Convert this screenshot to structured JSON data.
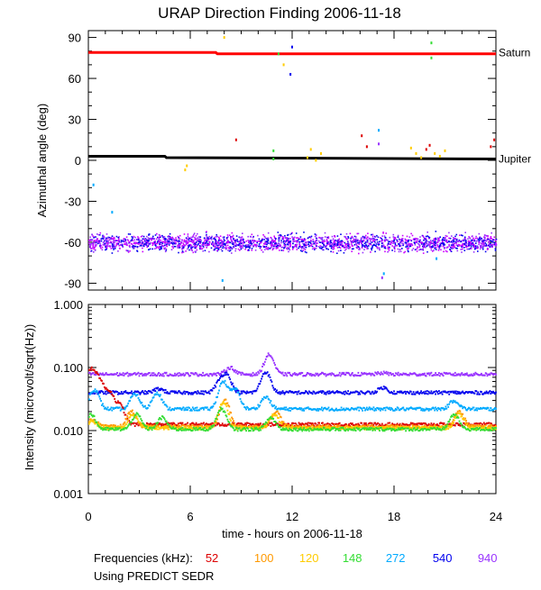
{
  "chart_data": [
    {
      "type": "scatter",
      "title": "URAP Direction Finding  2006-11-18",
      "ylabel": "Azimuthal angle (deg)",
      "xlim": [
        0,
        24
      ],
      "ylim": [
        -95,
        95
      ],
      "yticks": [
        -90,
        -60,
        -30,
        0,
        30,
        60,
        90
      ],
      "xticks": [
        0,
        6,
        12,
        18,
        24
      ],
      "reference_lines": [
        {
          "name": "Saturn",
          "color": "#ff0000",
          "points": [
            [
              0,
              79
            ],
            [
              7.5,
              79
            ],
            [
              7.6,
              78
            ],
            [
              24,
              78
            ]
          ]
        },
        {
          "name": "Jupiter",
          "color": "#000000",
          "points": [
            [
              0,
              3
            ],
            [
              4.5,
              3
            ],
            [
              4.6,
              2
            ],
            [
              24,
              1
            ]
          ]
        }
      ],
      "band": {
        "center": -60,
        "spread": 6,
        "colors": [
          "#9933ff",
          "#0000ee",
          "#cc00ff"
        ]
      },
      "scatter_points": [
        {
          "x": 8.0,
          "y": 90,
          "color": "#ffcc00"
        },
        {
          "x": 8.7,
          "y": 15,
          "color": "#dd0000"
        },
        {
          "x": 10.9,
          "y": 7,
          "color": "#33dd33"
        },
        {
          "x": 10.9,
          "y": 1,
          "color": "#33dd33"
        },
        {
          "x": 11.2,
          "y": 78,
          "color": "#33dd33"
        },
        {
          "x": 11.5,
          "y": 70,
          "color": "#ffcc00"
        },
        {
          "x": 12.0,
          "y": 83,
          "color": "#0000ee"
        },
        {
          "x": 11.9,
          "y": 63,
          "color": "#0000ee"
        },
        {
          "x": 5.8,
          "y": -4,
          "color": "#ffcc00"
        },
        {
          "x": 5.7,
          "y": -7,
          "color": "#ffcc00"
        },
        {
          "x": 1.4,
          "y": -38,
          "color": "#00aaff"
        },
        {
          "x": 0.3,
          "y": -18,
          "color": "#00aaff"
        },
        {
          "x": 7.9,
          "y": -88,
          "color": "#00aaff"
        },
        {
          "x": 12.9,
          "y": 2,
          "color": "#ffcc00"
        },
        {
          "x": 13.1,
          "y": 8,
          "color": "#ffcc00"
        },
        {
          "x": 13.4,
          "y": 0,
          "color": "#ffcc00"
        },
        {
          "x": 13.7,
          "y": 5,
          "color": "#ffcc00"
        },
        {
          "x": 16.1,
          "y": 18,
          "color": "#dd0000"
        },
        {
          "x": 16.4,
          "y": 10,
          "color": "#dd0000"
        },
        {
          "x": 17.1,
          "y": 12,
          "color": "#9933ff"
        },
        {
          "x": 17.1,
          "y": 22,
          "color": "#00aaff"
        },
        {
          "x": 17.3,
          "y": -86,
          "color": "#9933ff"
        },
        {
          "x": 17.4,
          "y": -83,
          "color": "#00aaff"
        },
        {
          "x": 19.0,
          "y": 9,
          "color": "#ffcc00"
        },
        {
          "x": 19.3,
          "y": 5,
          "color": "#ffcc00"
        },
        {
          "x": 19.6,
          "y": 2,
          "color": "#ffcc00"
        },
        {
          "x": 19.9,
          "y": 8,
          "color": "#dd0000"
        },
        {
          "x": 20.1,
          "y": 11,
          "color": "#dd0000"
        },
        {
          "x": 20.4,
          "y": 5,
          "color": "#ffcc00"
        },
        {
          "x": 20.7,
          "y": 3,
          "color": "#ffcc00"
        },
        {
          "x": 21.0,
          "y": 7,
          "color": "#ffcc00"
        },
        {
          "x": 20.2,
          "y": 86,
          "color": "#33dd33"
        },
        {
          "x": 20.2,
          "y": 75,
          "color": "#33dd33"
        },
        {
          "x": 20.5,
          "y": -72,
          "color": "#00aaff"
        },
        {
          "x": 23.9,
          "y": 15,
          "color": "#dd0000"
        },
        {
          "x": 23.7,
          "y": 10,
          "color": "#dd0000"
        }
      ],
      "annotations": [
        {
          "text": "Saturn",
          "x": 24,
          "y": 79
        },
        {
          "text": "Jupiter",
          "x": 24,
          "y": 1
        }
      ]
    },
    {
      "type": "line",
      "xlabel": "time - hours on 2006-11-18",
      "ylabel": "Intensity (microvolt/sqrt(Hz))",
      "xlim": [
        0,
        24
      ],
      "ylim": [
        0.001,
        1.0
      ],
      "yscale": "log",
      "ytick_labels": [
        "0.001",
        "0.010",
        "0.100",
        "1.000"
      ],
      "xtick_labels": [
        "0",
        "6",
        "12",
        "18",
        "24"
      ],
      "series": [
        {
          "name": "940",
          "color": "#9933ff",
          "base": 0.078,
          "bumps": [
            [
              10.6,
              0.16
            ],
            [
              8.3,
              0.1
            ],
            [
              17.3,
              0.082
            ]
          ]
        },
        {
          "name": "540",
          "color": "#0000ee",
          "base": 0.04,
          "bumps": [
            [
              10.4,
              0.085
            ],
            [
              8.1,
              0.075
            ],
            [
              7.7,
              0.058
            ],
            [
              17.3,
              0.048
            ],
            [
              4.1,
              0.046
            ]
          ]
        },
        {
          "name": "272",
          "color": "#00aaff",
          "base": 0.022,
          "bumps": [
            [
              0.3,
              0.045
            ],
            [
              2.7,
              0.038
            ],
            [
              4.0,
              0.04
            ],
            [
              7.9,
              0.06
            ],
            [
              8.6,
              0.045
            ],
            [
              10.4,
              0.034
            ],
            [
              21.5,
              0.03
            ]
          ]
        },
        {
          "name": "52",
          "color": "#dd0000",
          "base": 0.0125,
          "bumps": [
            [
              0.1,
              0.09
            ],
            [
              0.6,
              0.06
            ],
            [
              1.2,
              0.04
            ],
            [
              1.8,
              0.025
            ]
          ]
        },
        {
          "name": "100",
          "color": "#ff9900",
          "base": 0.0115,
          "bumps": [
            [
              0.2,
              0.015
            ],
            [
              2.5,
              0.02
            ],
            [
              8.0,
              0.03
            ],
            [
              11.0,
              0.02
            ],
            [
              21.8,
              0.02
            ]
          ]
        },
        {
          "name": "120",
          "color": "#ffcc00",
          "base": 0.011,
          "bumps": [
            [
              0.2,
              0.014
            ],
            [
              2.6,
              0.018
            ],
            [
              7.9,
              0.028
            ],
            [
              10.9,
              0.018
            ],
            [
              21.8,
              0.018
            ]
          ]
        },
        {
          "name": "148",
          "color": "#33dd33",
          "base": 0.0105,
          "bumps": [
            [
              0.1,
              0.018
            ],
            [
              2.8,
              0.018
            ],
            [
              4.3,
              0.016
            ],
            [
              7.8,
              0.022
            ],
            [
              10.7,
              0.016
            ],
            [
              21.5,
              0.018
            ]
          ]
        }
      ]
    }
  ],
  "legend": {
    "prefix": "Frequencies (kHz):",
    "items": [
      {
        "label": "52",
        "color": "#dd0000"
      },
      {
        "label": "100",
        "color": "#ff9900"
      },
      {
        "label": "120",
        "color": "#ffcc00"
      },
      {
        "label": "148",
        "color": "#33dd33"
      },
      {
        "label": "272",
        "color": "#00aaff"
      },
      {
        "label": "540",
        "color": "#0000ee"
      },
      {
        "label": "940",
        "color": "#9933ff"
      }
    ]
  },
  "footnote": "Using PREDICT SEDR"
}
